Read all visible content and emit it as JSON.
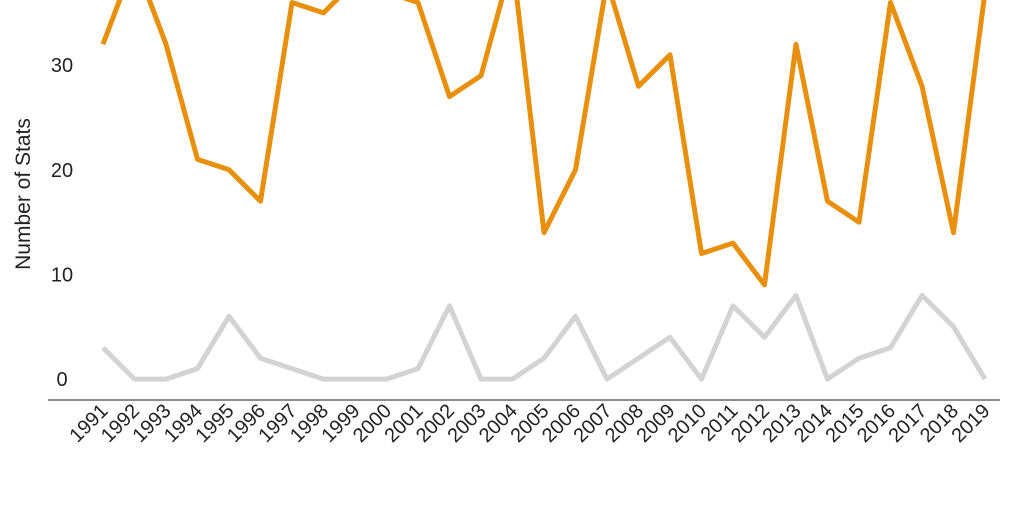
{
  "chart_data": {
    "type": "line",
    "title": "",
    "xlabel": "",
    "ylabel": "Number of Stats",
    "x": [
      "1991",
      "1992",
      "1993",
      "1994",
      "1995",
      "1996",
      "1997",
      "1998",
      "1999",
      "2000",
      "2001",
      "2002",
      "2003",
      "2004",
      "2005",
      "2006",
      "2007",
      "2008",
      "2009",
      "2010",
      "2011",
      "2012",
      "2013",
      "2014",
      "2015",
      "2016",
      "2017",
      "2018",
      "2019"
    ],
    "yticks": [
      0,
      10,
      20,
      30
    ],
    "ylim": [
      -2,
      37
    ],
    "grid": false,
    "series": [
      {
        "color": "#E8900C",
        "values": [
          32,
          40,
          32,
          21,
          20,
          17,
          36,
          35,
          38,
          37,
          36,
          27,
          29,
          40,
          14,
          20,
          38,
          28,
          31,
          12,
          13,
          9,
          32,
          17,
          15,
          36,
          28,
          14,
          37
        ]
      },
      {
        "color": "#D3D3D3",
        "values": [
          3,
          0,
          0,
          1,
          6,
          2,
          1,
          0,
          0,
          0,
          1,
          7,
          0,
          0,
          2,
          6,
          0,
          2,
          4,
          0,
          7,
          4,
          8,
          0,
          2,
          3,
          8,
          5,
          0
        ]
      }
    ]
  }
}
